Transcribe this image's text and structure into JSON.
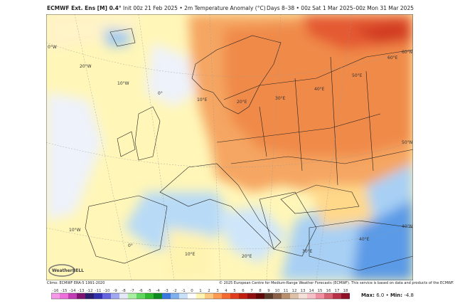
{
  "header": {
    "model": "ECMWF Ext. Ens [M] 0.4°",
    "init": "Init 00z 21 Feb 2025",
    "sep": "•",
    "field": "2m Temperature Anomaly (°C)",
    "range": "Days 8–38 • 00z Sat 1 Mar 2025–00z Mon 31 Mar 2025"
  },
  "map": {
    "labels": [
      "0°W",
      "20°W",
      "10°W",
      "0°",
      "10°E",
      "20°E",
      "30°E",
      "40°E",
      "50°E",
      "60°E",
      "60°N",
      "50°N",
      "40°N",
      "10°W",
      "0°",
      "10°E",
      "20°E",
      "30°E",
      "40°E"
    ],
    "logo": "WeatherBELL"
  },
  "footer": {
    "climo": "Climo: ECMWF ERA-5 1991-2020",
    "copyright": "© 2025 European Centre for Medium-Range Weather Forecasts (ECMWF). This service is based on data and products of the ECMWF.",
    "max_label": "Max:",
    "max": "6.0",
    "sep": "•",
    "min_label": "Min:",
    "min": "-4.8"
  },
  "colorbar": {
    "ticks": [
      "-16",
      "-15",
      "-14",
      "-13",
      "-12",
      "-11",
      "-10",
      "-9",
      "-8",
      "-7",
      "-6",
      "-5",
      "-4",
      "-3",
      "-2",
      "-1",
      "0",
      "1",
      "2",
      "3",
      "4",
      "5",
      "6",
      "7",
      "8",
      "9",
      "10",
      "11",
      "12",
      "13",
      "14",
      "15",
      "16",
      "17",
      "18"
    ],
    "colors": [
      "#f69ae8",
      "#ec6fdc",
      "#c23cb4",
      "#7e1470",
      "#2a1c6e",
      "#3030b0",
      "#6464e0",
      "#a0a8f0",
      "#e4e8f8",
      "#a8f0a0",
      "#60d860",
      "#30b830",
      "#0e8a20",
      "#3a78e0",
      "#7fb0f0",
      "#c8e0fa",
      "#ffffff",
      "#fff4b0",
      "#ffc880",
      "#ff9a50",
      "#f56a30",
      "#e03e1e",
      "#c02010",
      "#901010",
      "#600808",
      "#5a3a28",
      "#8a6048",
      "#b89070",
      "#dcc0a8",
      "#f4e0d8",
      "#f8c0c8",
      "#f090a0",
      "#d86070",
      "#b83048",
      "#901028"
    ]
  },
  "colors": {
    "warm": "#f5a05a",
    "cool": "#a8d0f4",
    "neutral": "#fff6b8"
  }
}
